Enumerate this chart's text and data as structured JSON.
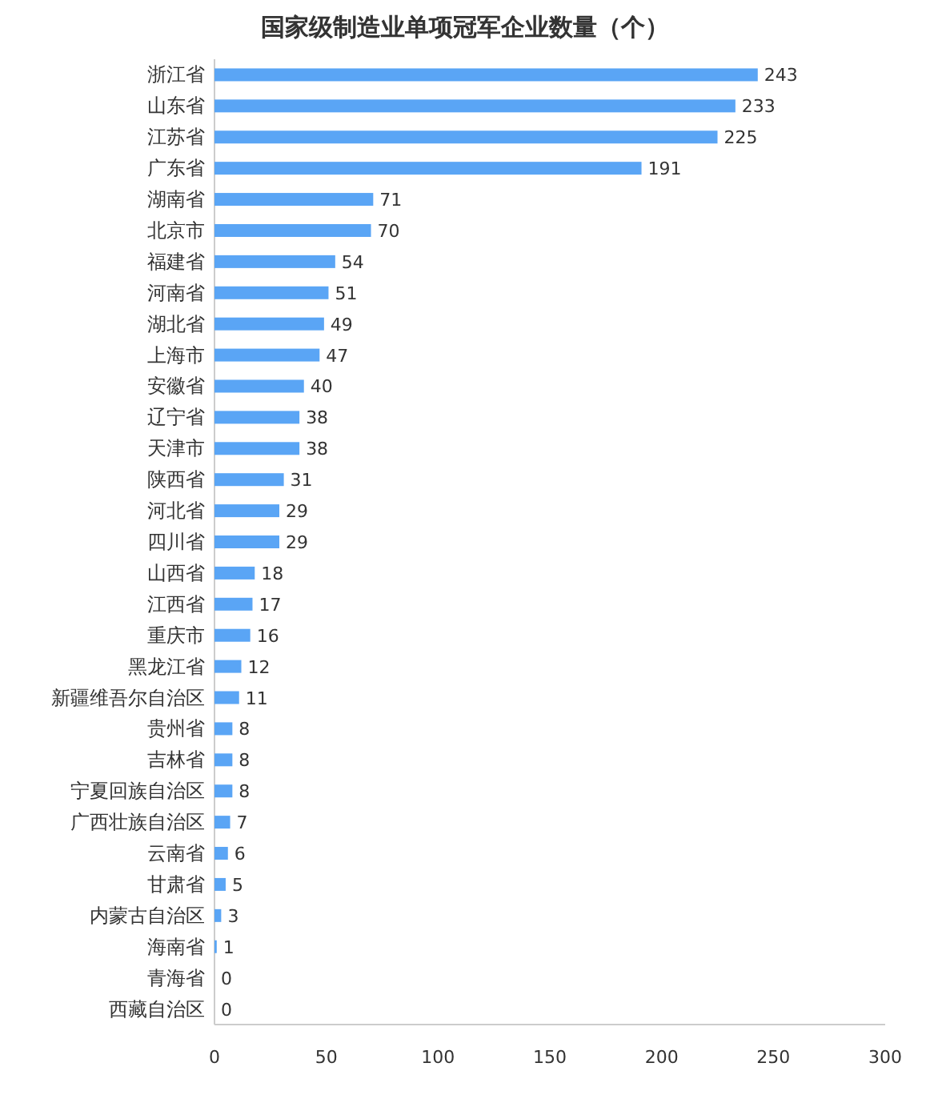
{
  "chart_data": {
    "type": "bar",
    "orientation": "horizontal",
    "title": "国家级制造业单项冠军企业数量（个）",
    "categories": [
      "浙江省",
      "山东省",
      "江苏省",
      "广东省",
      "湖南省",
      "北京市",
      "福建省",
      "河南省",
      "湖北省",
      "上海市",
      "安徽省",
      "辽宁省",
      "天津市",
      "陕西省",
      "河北省",
      "四川省",
      "山西省",
      "江西省",
      "重庆市",
      "黑龙江省",
      "新疆维吾尔自治区",
      "贵州省",
      "吉林省",
      "宁夏回族自治区",
      "广西壮族自治区",
      "云南省",
      "甘肃省",
      "内蒙古自治区",
      "海南省",
      "青海省",
      "西藏自治区"
    ],
    "values": [
      243,
      233,
      225,
      191,
      71,
      70,
      54,
      51,
      49,
      47,
      40,
      38,
      38,
      31,
      29,
      29,
      18,
      17,
      16,
      12,
      11,
      8,
      8,
      8,
      7,
      6,
      5,
      3,
      1,
      0,
      0
    ],
    "color": "#5aa5f5",
    "xlim": [
      0,
      300
    ],
    "xticks": [
      0,
      50,
      100,
      150,
      200,
      250,
      300
    ],
    "data_labels": true
  }
}
